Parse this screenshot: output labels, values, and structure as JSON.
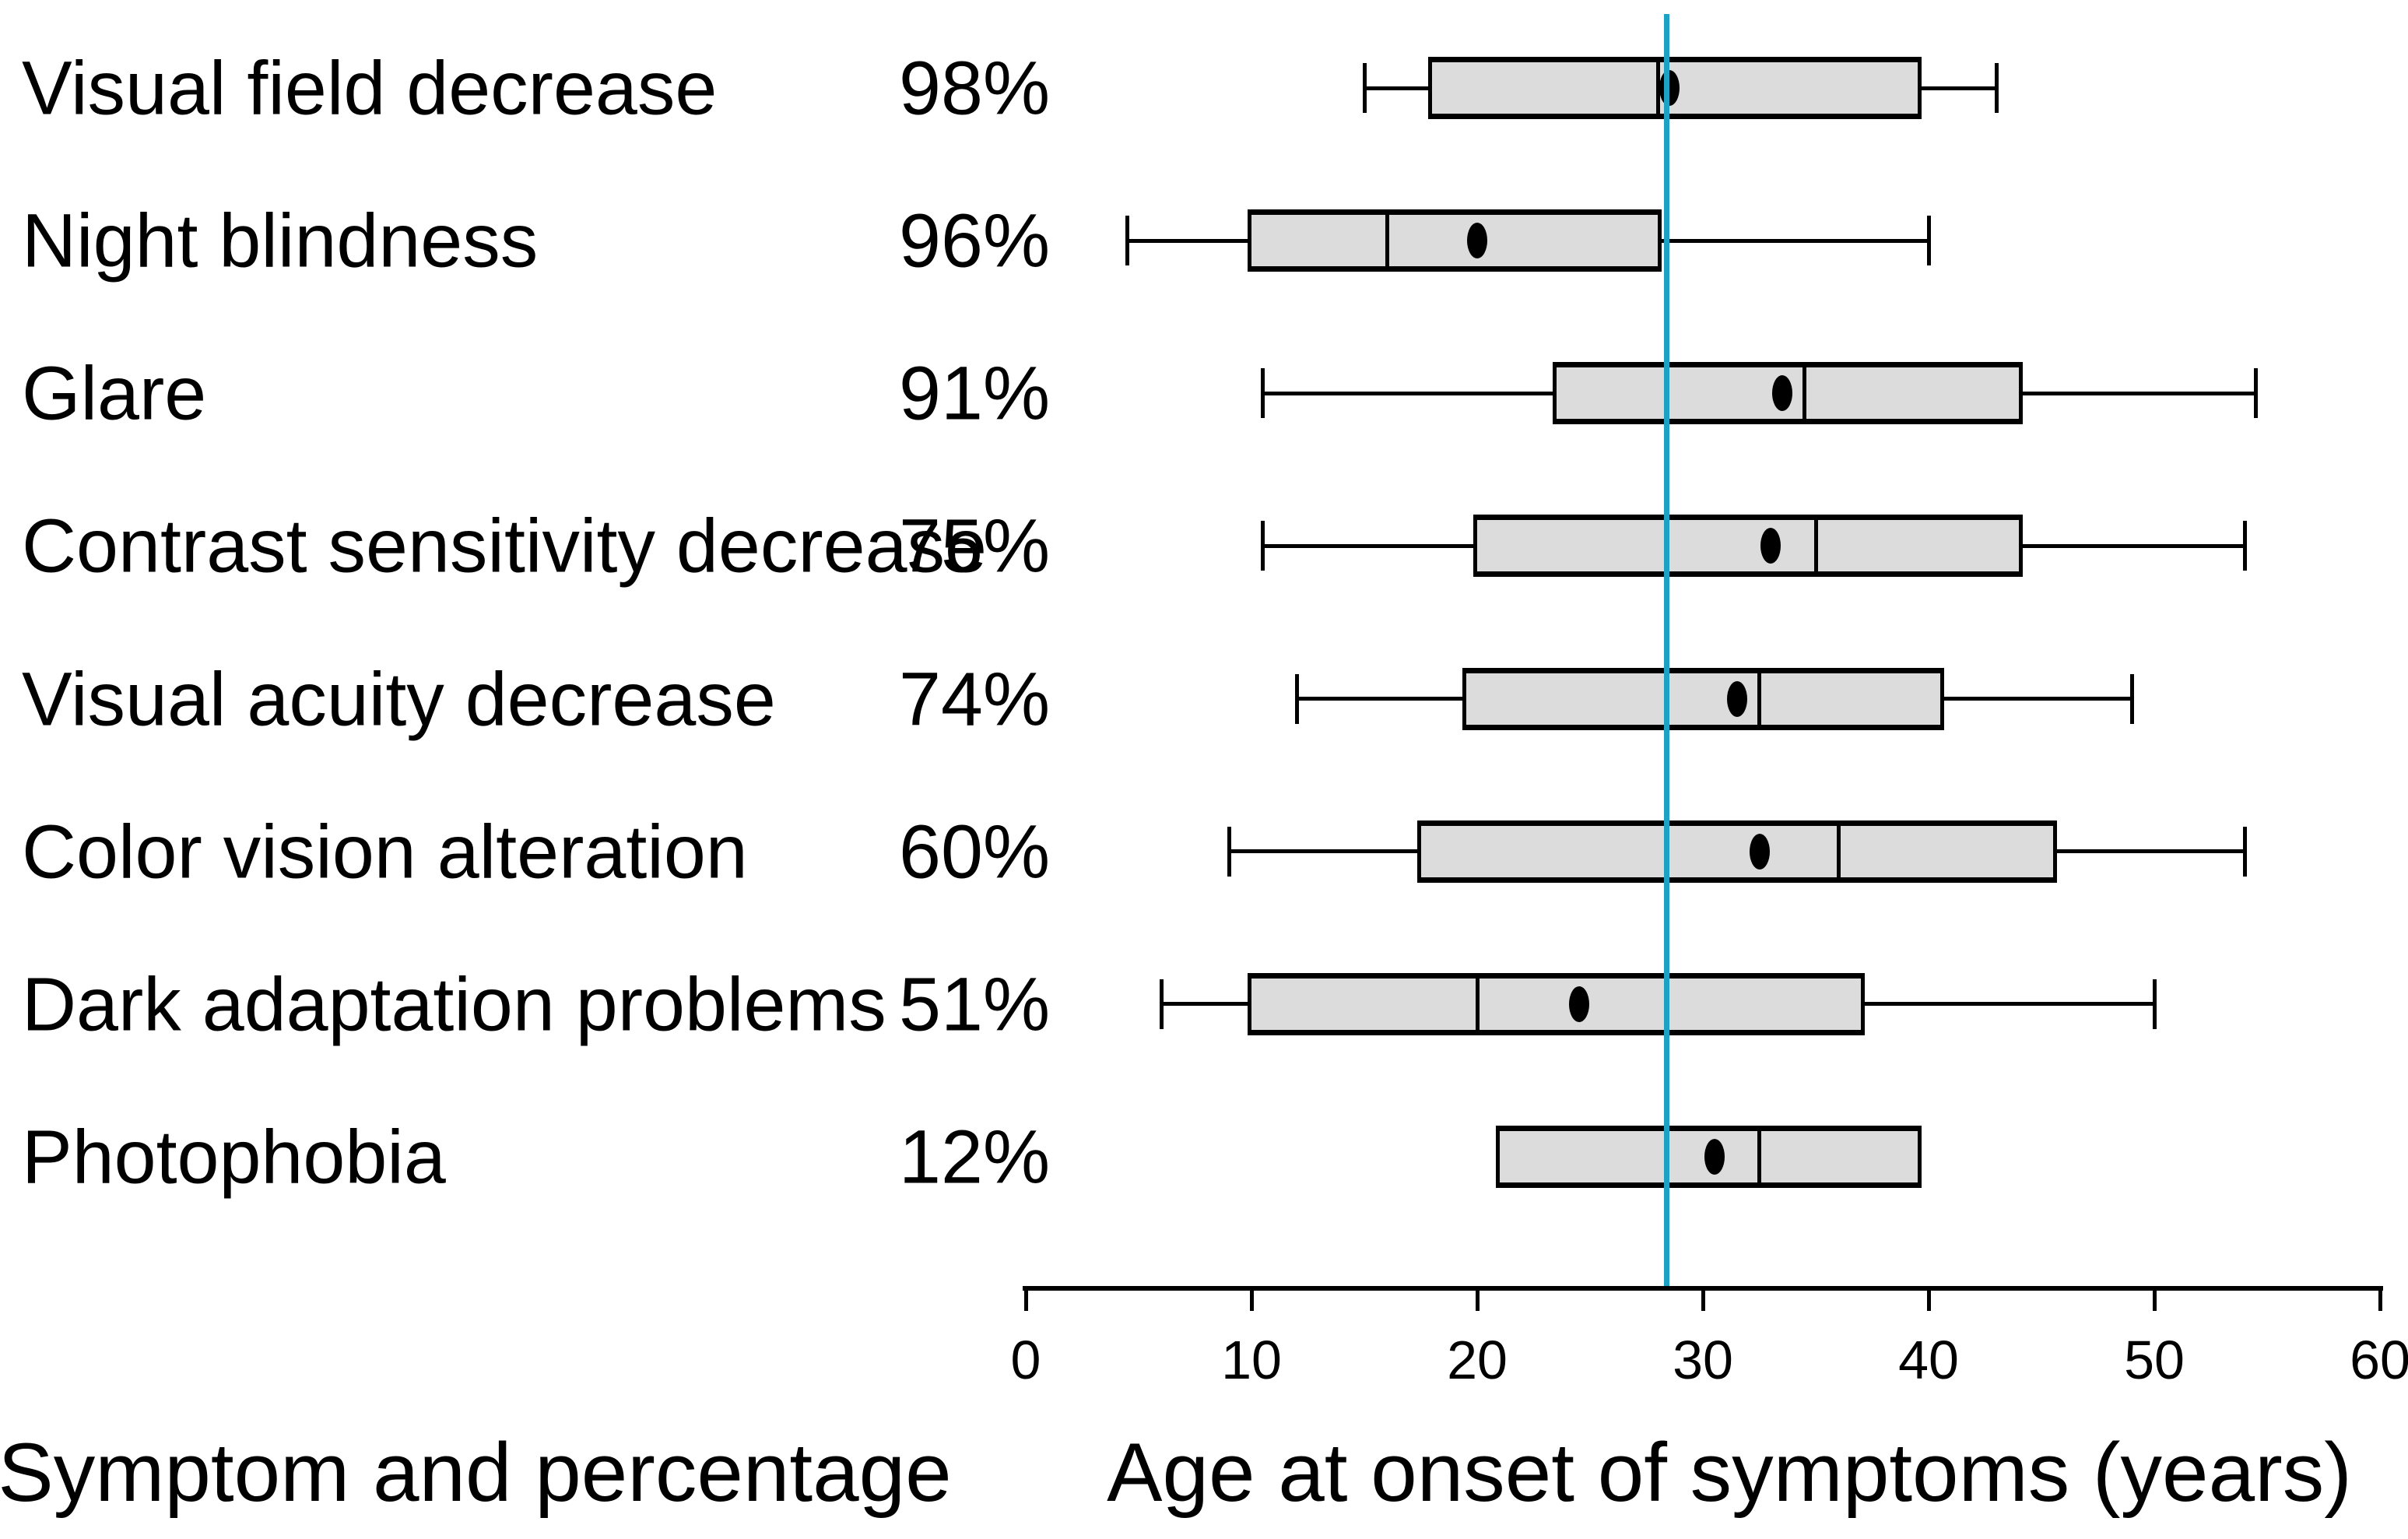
{
  "chart_data": {
    "type": "boxplot",
    "orientation": "horizontal",
    "x_axis": {
      "label": "Age at onset of symptoms (years)",
      "min": 0,
      "max": 60,
      "ticks": [
        0,
        10,
        20,
        30,
        40,
        50,
        60
      ]
    },
    "left_axis_label": "Symptom and percentage",
    "reference_line": {
      "value": 28.4,
      "color": "#1da2c6"
    },
    "style": {
      "box_fill": "#dcdcdc",
      "box_border": "#000000",
      "mean_marker": "filled-ellipse",
      "grid": false
    },
    "rows": [
      {
        "label": "Visual field decrease",
        "percentage": "98%",
        "whisker_low": 15,
        "q1": 18,
        "median": 28,
        "mean": 28.5,
        "q3": 39.5,
        "whisker_high": 43
      },
      {
        "label": "Night blindness",
        "percentage": "96%",
        "whisker_low": 4.5,
        "q1": 10,
        "median": 16,
        "mean": 20,
        "q3": 28,
        "whisker_high": 40
      },
      {
        "label": "Glare",
        "percentage": "91%",
        "whisker_low": 10.5,
        "q1": 23.5,
        "median": 34.5,
        "mean": 33.5,
        "q3": 44,
        "whisker_high": 54.5
      },
      {
        "label": "Contrast sensitivity decrease",
        "percentage": "75%",
        "whisker_low": 10.5,
        "q1": 20,
        "median": 35,
        "mean": 33,
        "q3": 44,
        "whisker_high": 54
      },
      {
        "label": "Visual acuity decrease",
        "percentage": "74%",
        "whisker_low": 12,
        "q1": 19.5,
        "median": 32.5,
        "mean": 31.5,
        "q3": 40.5,
        "whisker_high": 49
      },
      {
        "label": "Color vision alteration",
        "percentage": "60%",
        "whisker_low": 9,
        "q1": 17.5,
        "median": 36,
        "mean": 32.5,
        "q3": 45.5,
        "whisker_high": 54
      },
      {
        "label": "Dark adaptation problems",
        "percentage": "51%",
        "whisker_low": 6,
        "q1": 10,
        "median": 20,
        "mean": 24.5,
        "q3": 37,
        "whisker_high": 50
      },
      {
        "label": "Photophobia",
        "percentage": "12%",
        "whisker_low": null,
        "q1": 21,
        "median": 32.5,
        "mean": 30.5,
        "q3": 39.5,
        "whisker_high": null
      }
    ]
  }
}
